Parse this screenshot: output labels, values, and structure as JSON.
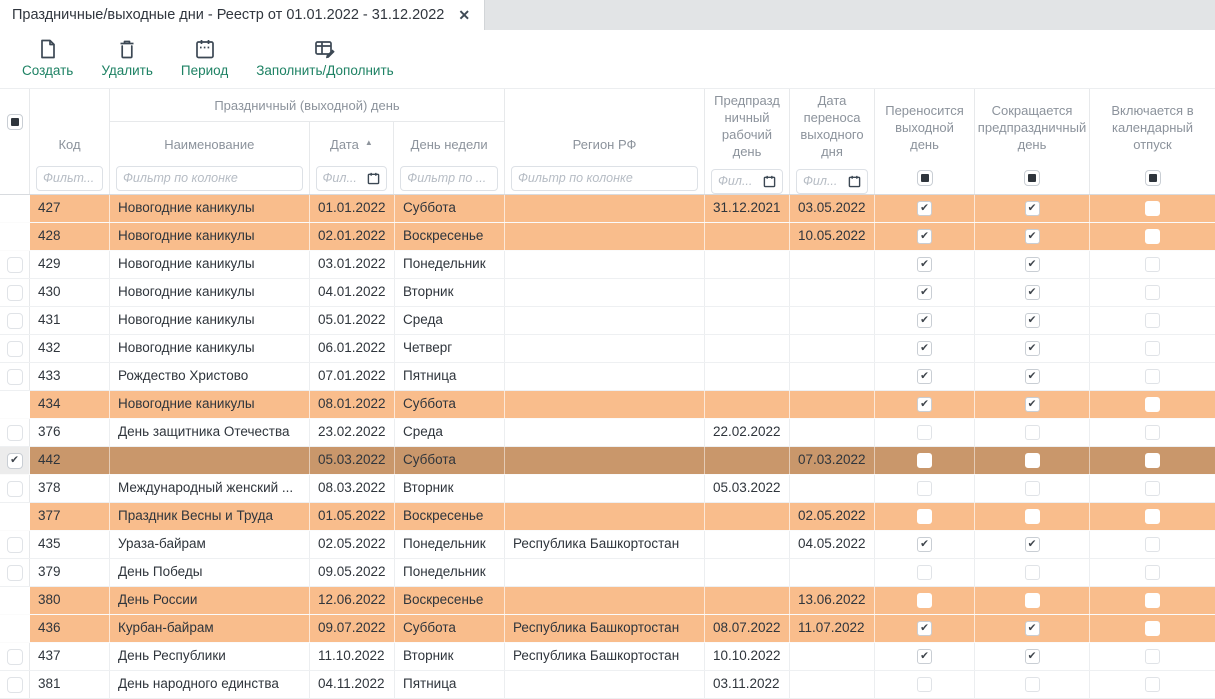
{
  "tab": {
    "title": "Праздничные/выходные дни - Реестр от 01.01.2022 - 31.12.2022",
    "close_glyph": "✕"
  },
  "toolbar": {
    "buttons": [
      {
        "id": "create",
        "label": "Создать"
      },
      {
        "id": "delete",
        "label": "Удалить"
      },
      {
        "id": "period",
        "label": "Период"
      },
      {
        "id": "fill",
        "label": "Заполнить/Дополнить"
      }
    ]
  },
  "colors": {
    "row_weekend_highlight": "#f9bd8c",
    "row_selected": "#c9976b",
    "toolbar_accent_green": "#1e8264",
    "icon_dark": "#3c4854"
  },
  "table": {
    "group_header": "Праздничный (выходной) день",
    "columns": {
      "code": "Код",
      "name": "Наименование",
      "date": "Дата",
      "weekday": "День недели",
      "region": "Регион РФ",
      "preholiday": "Предпразд ничный рабочий день",
      "transfer": "Дата переноса выходного дня",
      "moved": "Переносится выходной день",
      "shortened": "Сокращается предпраздничный день",
      "vacation": "Включается в календарный отпуск"
    },
    "sort": {
      "column": "date",
      "direction": "asc",
      "glyph": "▲"
    },
    "filters": {
      "code": "Фильт...",
      "name": "Фильтр по колонке",
      "date": "Фил...",
      "weekday": "Фильтр по ...",
      "region": "Фильтр по колонке",
      "preholiday": "Фил...",
      "transfer": "Фил..."
    },
    "check_glyph": "✔",
    "rows": [
      {
        "code": "427",
        "name": "Новогодние каникулы",
        "date": "01.01.2022",
        "weekday": "Суббота",
        "region": "",
        "preholiday": "31.12.2021",
        "transfer": "03.05.2022",
        "moved": true,
        "shortened": true,
        "vacation": false,
        "state": "weekend",
        "checked": false
      },
      {
        "code": "428",
        "name": "Новогодние каникулы",
        "date": "02.01.2022",
        "weekday": "Воскресенье",
        "region": "",
        "preholiday": "",
        "transfer": "10.05.2022",
        "moved": true,
        "shortened": true,
        "vacation": false,
        "state": "weekend",
        "checked": false
      },
      {
        "code": "429",
        "name": "Новогодние каникулы",
        "date": "03.01.2022",
        "weekday": "Понедельник",
        "region": "",
        "preholiday": "",
        "transfer": "",
        "moved": true,
        "shortened": true,
        "vacation": false,
        "state": "normal",
        "checked": false
      },
      {
        "code": "430",
        "name": "Новогодние каникулы",
        "date": "04.01.2022",
        "weekday": "Вторник",
        "region": "",
        "preholiday": "",
        "transfer": "",
        "moved": true,
        "shortened": true,
        "vacation": false,
        "state": "normal",
        "checked": false
      },
      {
        "code": "431",
        "name": "Новогодние каникулы",
        "date": "05.01.2022",
        "weekday": "Среда",
        "region": "",
        "preholiday": "",
        "transfer": "",
        "moved": true,
        "shortened": true,
        "vacation": false,
        "state": "normal",
        "checked": false
      },
      {
        "code": "432",
        "name": "Новогодние каникулы",
        "date": "06.01.2022",
        "weekday": "Четверг",
        "region": "",
        "preholiday": "",
        "transfer": "",
        "moved": true,
        "shortened": true,
        "vacation": false,
        "state": "normal",
        "checked": false
      },
      {
        "code": "433",
        "name": "Рождество Христово",
        "date": "07.01.2022",
        "weekday": "Пятница",
        "region": "",
        "preholiday": "",
        "transfer": "",
        "moved": true,
        "shortened": true,
        "vacation": false,
        "state": "normal",
        "checked": false
      },
      {
        "code": "434",
        "name": "Новогодние каникулы",
        "date": "08.01.2022",
        "weekday": "Суббота",
        "region": "",
        "preholiday": "",
        "transfer": "",
        "moved": true,
        "shortened": true,
        "vacation": false,
        "state": "weekend",
        "checked": false
      },
      {
        "code": "376",
        "name": "День защитника Отечества",
        "date": "23.02.2022",
        "weekday": "Среда",
        "region": "",
        "preholiday": "22.02.2022",
        "transfer": "",
        "moved": false,
        "shortened": false,
        "vacation": false,
        "state": "normal",
        "checked": false
      },
      {
        "code": "442",
        "name": "",
        "date": "05.03.2022",
        "weekday": "Суббота",
        "region": "",
        "preholiday": "",
        "transfer": "07.03.2022",
        "moved": false,
        "shortened": false,
        "vacation": false,
        "state": "selected",
        "checked": true
      },
      {
        "code": "378",
        "name": "Международный женский ...",
        "date": "08.03.2022",
        "weekday": "Вторник",
        "region": "",
        "preholiday": "05.03.2022",
        "transfer": "",
        "moved": false,
        "shortened": false,
        "vacation": false,
        "state": "normal",
        "checked": false
      },
      {
        "code": "377",
        "name": "Праздник Весны и Труда",
        "date": "01.05.2022",
        "weekday": "Воскресенье",
        "region": "",
        "preholiday": "",
        "transfer": "02.05.2022",
        "moved": false,
        "shortened": false,
        "vacation": false,
        "state": "weekend",
        "checked": false
      },
      {
        "code": "435",
        "name": "Ураза-байрам",
        "date": "02.05.2022",
        "weekday": "Понедельник",
        "region": "Республика Башкортостан",
        "preholiday": "",
        "transfer": "04.05.2022",
        "moved": true,
        "shortened": true,
        "vacation": false,
        "state": "normal",
        "checked": false
      },
      {
        "code": "379",
        "name": "День Победы",
        "date": "09.05.2022",
        "weekday": "Понедельник",
        "region": "",
        "preholiday": "",
        "transfer": "",
        "moved": false,
        "shortened": false,
        "vacation": false,
        "state": "normal",
        "checked": false
      },
      {
        "code": "380",
        "name": "День России",
        "date": "12.06.2022",
        "weekday": "Воскресенье",
        "region": "",
        "preholiday": "",
        "transfer": "13.06.2022",
        "moved": false,
        "shortened": false,
        "vacation": false,
        "state": "weekend",
        "checked": false
      },
      {
        "code": "436",
        "name": "Курбан-байрам",
        "date": "09.07.2022",
        "weekday": "Суббота",
        "region": "Республика Башкортостан",
        "preholiday": "08.07.2022",
        "transfer": "11.07.2022",
        "moved": true,
        "shortened": true,
        "vacation": false,
        "state": "weekend",
        "checked": false
      },
      {
        "code": "437",
        "name": "День Республики",
        "date": "11.10.2022",
        "weekday": "Вторник",
        "region": "Республика Башкортостан",
        "preholiday": "10.10.2022",
        "transfer": "",
        "moved": true,
        "shortened": true,
        "vacation": false,
        "state": "normal",
        "checked": false
      },
      {
        "code": "381",
        "name": "День народного единства",
        "date": "04.11.2022",
        "weekday": "Пятница",
        "region": "",
        "preholiday": "03.11.2022",
        "transfer": "",
        "moved": false,
        "shortened": false,
        "vacation": false,
        "state": "normal",
        "checked": false
      }
    ]
  }
}
